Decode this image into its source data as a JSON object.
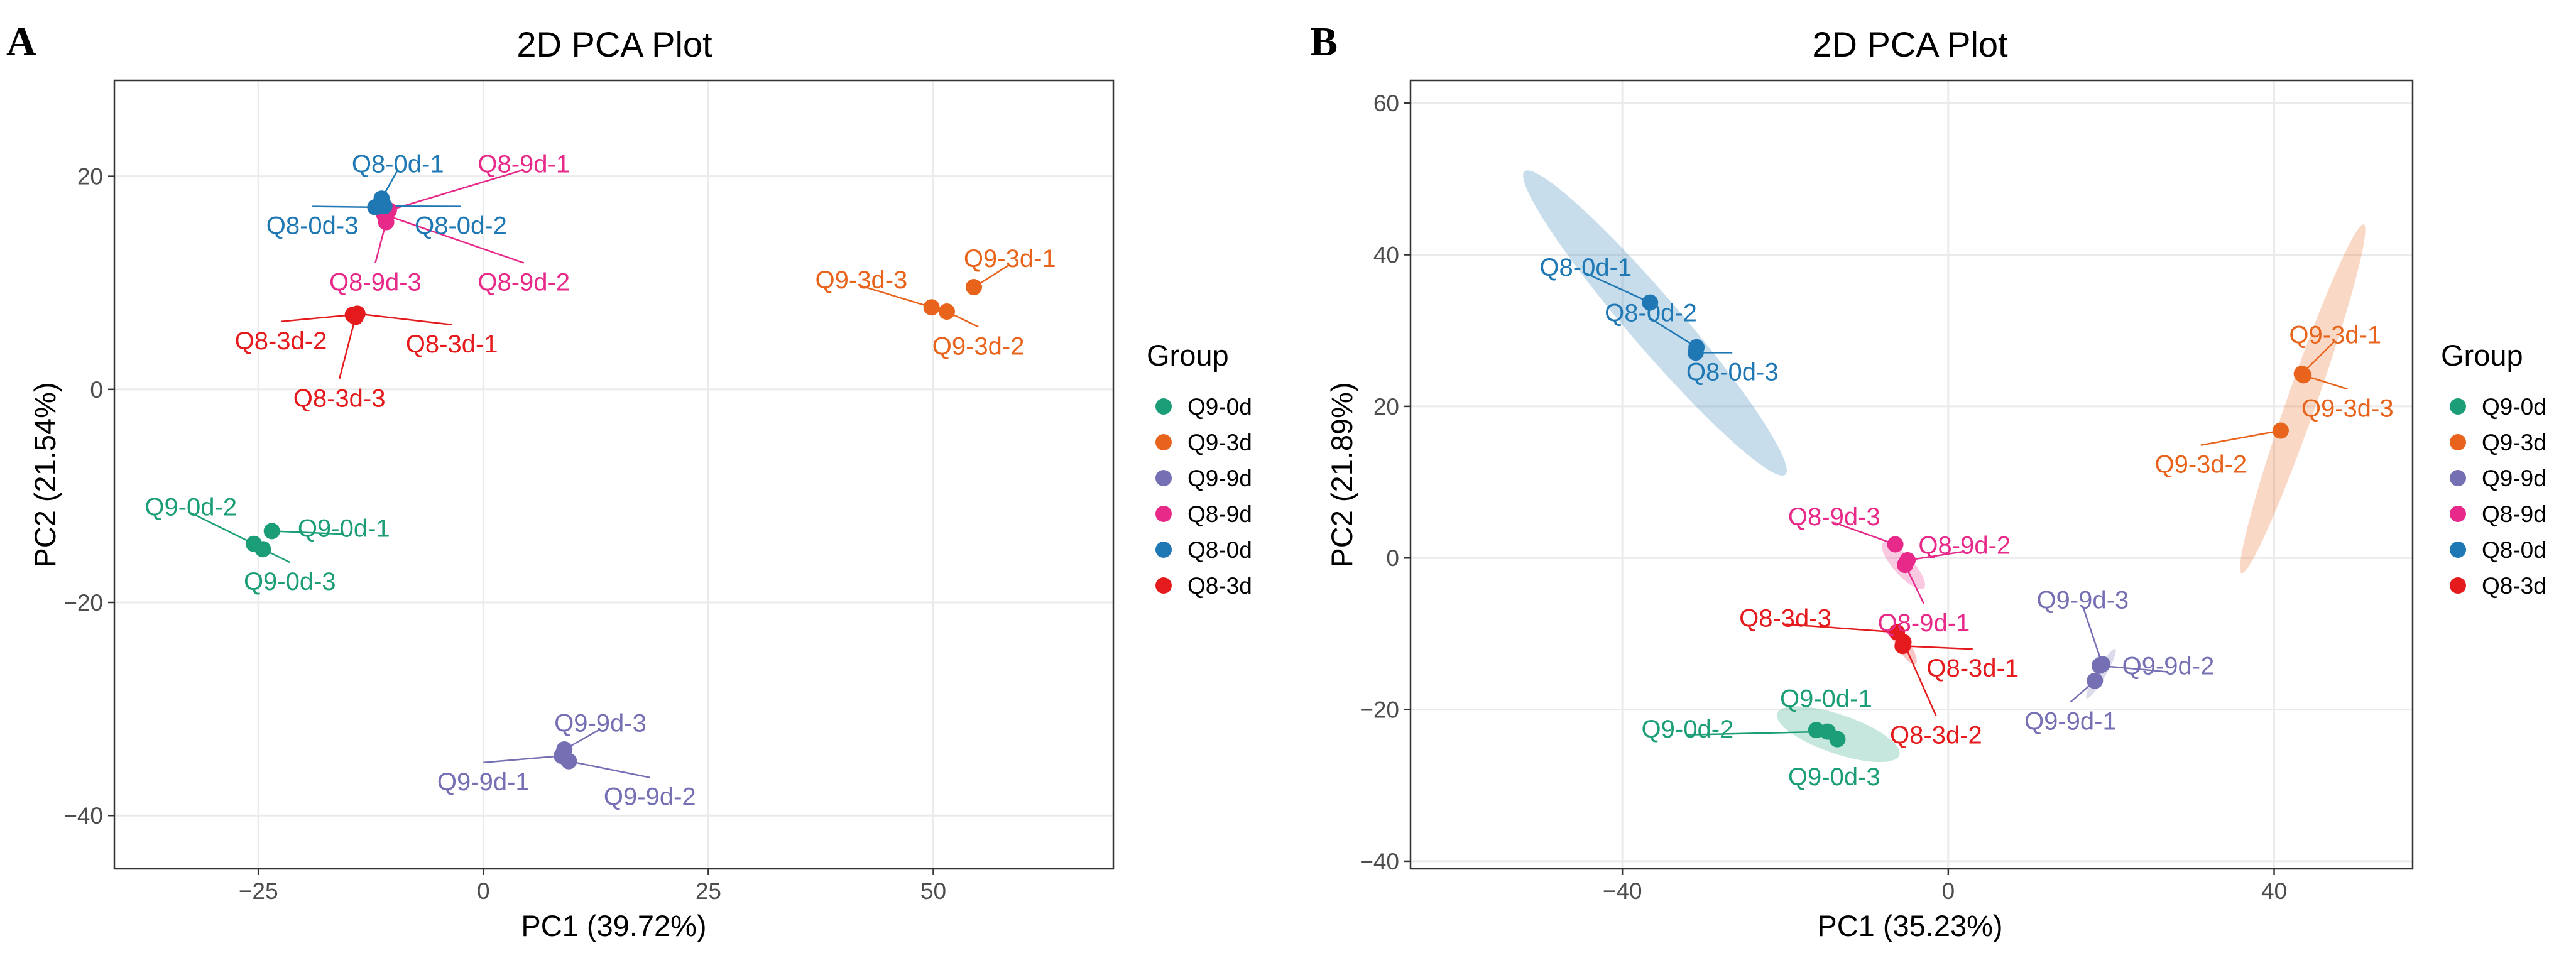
{
  "panels": [
    {
      "letter": "A",
      "title": "2D PCA Plot",
      "xlabel": "PC1 (39.72%)",
      "ylabel": "PC2 (21.54%)",
      "legend_title": "Group"
    },
    {
      "letter": "B",
      "title": "2D PCA Plot",
      "xlabel": "PC1 (35.23%)",
      "ylabel": "PC2 (21.89%)",
      "legend_title": "Group"
    }
  ],
  "groups": [
    {
      "name": "Q9-0d",
      "color": "#1b9e77"
    },
    {
      "name": "Q9-3d",
      "color": "#e8641c"
    },
    {
      "name": "Q9-9d",
      "color": "#7570b3"
    },
    {
      "name": "Q8-9d",
      "color": "#e7298a"
    },
    {
      "name": "Q8-0d",
      "color": "#1f78b4"
    },
    {
      "name": "Q8-3d",
      "color": "#e41a1c"
    }
  ],
  "chart_data": [
    {
      "type": "scatter",
      "title": "2D PCA Plot",
      "xlabel": "PC1 (39.72%)",
      "ylabel": "PC2 (21.54%)",
      "xlim": [
        -41,
        70
      ],
      "ylim": [
        -45,
        29
      ],
      "xticks": [
        -25,
        0,
        25,
        50
      ],
      "yticks": [
        -40,
        -20,
        0,
        20
      ],
      "xtick_labels": [
        "−25",
        "0",
        "25",
        "50"
      ],
      "ytick_labels": [
        "−40",
        "−20",
        "0",
        "20"
      ],
      "grid": true,
      "legend": "right",
      "points": [
        {
          "label": "Q9-0d-1",
          "group": "Q9-0d",
          "x": -23.5,
          "y": -13.3,
          "lx": -15.5,
          "ly": -13
        },
        {
          "label": "Q9-0d-2",
          "group": "Q9-0d",
          "x": -25.5,
          "y": -14.5,
          "lx": -32.5,
          "ly": -11
        },
        {
          "label": "Q9-0d-3",
          "group": "Q9-0d",
          "x": -24.5,
          "y": -15.0,
          "lx": -21.5,
          "ly": -18
        },
        {
          "label": "Q9-3d-1",
          "group": "Q9-3d",
          "x": 54.5,
          "y": 9.6,
          "lx": 58.5,
          "ly": 12.3
        },
        {
          "label": "Q9-3d-2",
          "group": "Q9-3d",
          "x": 51.5,
          "y": 7.3,
          "lx": 55,
          "ly": 4.1
        },
        {
          "label": "Q9-3d-3",
          "group": "Q9-3d",
          "x": 49.8,
          "y": 7.7,
          "lx": 42,
          "ly": 10.3
        },
        {
          "label": "Q9-9d-1",
          "group": "Q9-9d",
          "x": 8.7,
          "y": -34.4,
          "lx": 0,
          "ly": -36.8
        },
        {
          "label": "Q9-9d-2",
          "group": "Q9-9d",
          "x": 9.5,
          "y": -34.9,
          "lx": 18.5,
          "ly": -38.2
        },
        {
          "label": "Q9-9d-3",
          "group": "Q9-9d",
          "x": 9.0,
          "y": -33.8,
          "lx": 13,
          "ly": -31.3
        },
        {
          "label": "Q8-9d-1",
          "group": "Q8-9d",
          "x": -10.5,
          "y": 16.8,
          "lx": 4.5,
          "ly": 21.2
        },
        {
          "label": "Q8-9d-2",
          "group": "Q8-9d",
          "x": -11.0,
          "y": 16.4,
          "lx": 4.5,
          "ly": 10.1
        },
        {
          "label": "Q8-9d-3",
          "group": "Q8-9d",
          "x": -10.8,
          "y": 15.7,
          "lx": -12,
          "ly": 10.1
        },
        {
          "label": "Q8-0d-1",
          "group": "Q8-0d",
          "x": -11.3,
          "y": 17.9,
          "lx": -9.5,
          "ly": 21.2
        },
        {
          "label": "Q8-0d-2",
          "group": "Q8-0d",
          "x": -11.0,
          "y": 17.2,
          "lx": -2.5,
          "ly": 15.4
        },
        {
          "label": "Q8-0d-3",
          "group": "Q8-0d",
          "x": -12.0,
          "y": 17.1,
          "lx": -19,
          "ly": 15.4
        },
        {
          "label": "Q8-3d-1",
          "group": "Q8-3d",
          "x": -14.0,
          "y": 7.1,
          "lx": -3.5,
          "ly": 4.3
        },
        {
          "label": "Q8-3d-2",
          "group": "Q8-3d",
          "x": -14.5,
          "y": 7.0,
          "lx": -22.5,
          "ly": 4.6
        },
        {
          "label": "Q8-3d-3",
          "group": "Q8-3d",
          "x": -14.2,
          "y": 6.8,
          "lx": -16,
          "ly": -0.8
        }
      ]
    },
    {
      "type": "scatter",
      "title": "2D PCA Plot",
      "xlabel": "PC1 (35.23%)",
      "ylabel": "PC2 (21.89%)",
      "xlim": [
        -66,
        57
      ],
      "ylim": [
        -41,
        63
      ],
      "xticks": [
        -40,
        0,
        40
      ],
      "yticks": [
        -40,
        -20,
        0,
        20,
        40,
        60
      ],
      "xtick_labels": [
        "−40",
        "0",
        "40"
      ],
      "ytick_labels": [
        "−40",
        "−20",
        "0",
        "20",
        "40",
        "60"
      ],
      "grid": true,
      "legend": "right",
      "ellipses": [
        {
          "group": "Q8-0d",
          "x1": -52,
          "y1": 51,
          "x2": -20,
          "y2": 11,
          "w": 3.2
        },
        {
          "group": "Q9-3d",
          "x1": 36,
          "y1": -2,
          "x2": 51,
          "y2": 44,
          "w": 1.8
        },
        {
          "group": "Q8-9d",
          "x1": -8,
          "y1": 2,
          "x2": -3,
          "y2": -4,
          "w": 1.2
        },
        {
          "group": "Q8-3d",
          "x1": -7,
          "y1": -9,
          "x2": -4,
          "y2": -14,
          "w": 0.8
        },
        {
          "group": "Q9-0d",
          "x1": -21,
          "y1": -20.5,
          "x2": -6,
          "y2": -26,
          "w": 2.4
        },
        {
          "group": "Q9-9d",
          "x1": 17,
          "y1": -18.5,
          "x2": 20.5,
          "y2": -12,
          "w": 0.6
        }
      ],
      "points": [
        {
          "label": "Q9-0d-1",
          "group": "Q9-0d",
          "x": -16.2,
          "y": -22.7,
          "lx": -15,
          "ly": -18.5
        },
        {
          "label": "Q9-0d-2",
          "group": "Q9-0d",
          "x": -14.8,
          "y": -22.9,
          "lx": -32,
          "ly": -22.5
        },
        {
          "label": "Q9-0d-3",
          "group": "Q9-0d",
          "x": -13.6,
          "y": -23.9,
          "lx": -14,
          "ly": -28.8
        },
        {
          "label": "Q9-3d-1",
          "group": "Q9-3d",
          "x": 43.4,
          "y": 24.3,
          "lx": 47.5,
          "ly": 29.5
        },
        {
          "label": "Q9-3d-2",
          "group": "Q9-3d",
          "x": 40.8,
          "y": 16.8,
          "lx": 31,
          "ly": 12.4
        },
        {
          "label": "Q9-3d-3",
          "group": "Q9-3d",
          "x": 43.6,
          "y": 24.1,
          "lx": 49,
          "ly": 19.8
        },
        {
          "label": "Q9-9d-1",
          "group": "Q9-9d",
          "x": 18.0,
          "y": -16.2,
          "lx": 15,
          "ly": -21.5
        },
        {
          "label": "Q9-9d-2",
          "group": "Q9-9d",
          "x": 18.6,
          "y": -14.2,
          "lx": 27,
          "ly": -14.2
        },
        {
          "label": "Q9-9d-3",
          "group": "Q9-9d",
          "x": 18.9,
          "y": -14.0,
          "lx": 16.5,
          "ly": -5.5
        },
        {
          "label": "Q8-9d-1",
          "group": "Q8-9d",
          "x": -5.3,
          "y": -0.9,
          "lx": -3,
          "ly": -8.5
        },
        {
          "label": "Q8-9d-2",
          "group": "Q8-9d",
          "x": -5.0,
          "y": -0.3,
          "lx": 2,
          "ly": 1.7
        },
        {
          "label": "Q8-9d-3",
          "group": "Q8-9d",
          "x": -6.5,
          "y": 1.8,
          "lx": -14,
          "ly": 5.5
        },
        {
          "label": "Q8-0d-1",
          "group": "Q8-0d",
          "x": -36.6,
          "y": 33.7,
          "lx": -44.5,
          "ly": 38.4
        },
        {
          "label": "Q8-0d-2",
          "group": "Q8-0d",
          "x": -30.9,
          "y": 27.8,
          "lx": -36.5,
          "ly": 32.4
        },
        {
          "label": "Q8-0d-3",
          "group": "Q8-0d",
          "x": -31.0,
          "y": 27.1,
          "lx": -26.5,
          "ly": 24.6
        },
        {
          "label": "Q8-3d-1",
          "group": "Q8-3d",
          "x": -5.6,
          "y": -11.6,
          "lx": 3,
          "ly": -14.5
        },
        {
          "label": "Q8-3d-2",
          "group": "Q8-3d",
          "x": -5.5,
          "y": -11.1,
          "lx": -1.5,
          "ly": -23.3
        },
        {
          "label": "Q8-3d-3",
          "group": "Q8-3d",
          "x": -6.3,
          "y": -9.8,
          "lx": -20,
          "ly": -7.9
        }
      ]
    }
  ]
}
